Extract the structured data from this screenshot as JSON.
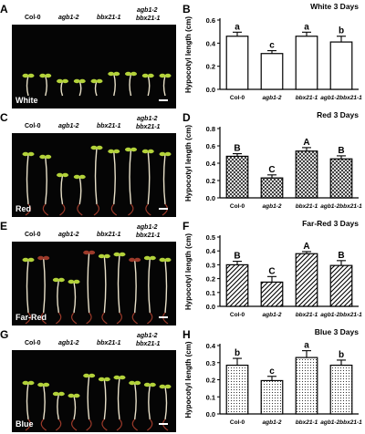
{
  "panels": [
    {
      "photo_label": "A",
      "chart_label": "B",
      "condition": "White",
      "pattern": "white",
      "chart_data": {
        "type": "bar",
        "title": "White 3 Days",
        "xlabel": "",
        "ylabel": "Hypocotyl length (cm)",
        "categories": [
          "Col-0",
          "agb1-2",
          "bbx21-1",
          "agb1-2bbx21-1"
        ],
        "values": [
          0.46,
          0.31,
          0.46,
          0.41
        ],
        "errors": [
          0.035,
          0.025,
          0.035,
          0.05
        ],
        "letters": [
          "a",
          "c",
          "a",
          "b"
        ],
        "ylim": [
          0,
          0.6
        ],
        "yticks": [
          "0.0",
          "0.2",
          "0.4",
          "0.6"
        ]
      }
    },
    {
      "photo_label": "C",
      "chart_label": "D",
      "condition": "Red",
      "pattern": "cross",
      "chart_data": {
        "type": "bar",
        "title": "Red 3 Days",
        "xlabel": "",
        "ylabel": "Hypocotyl length (cm)",
        "categories": [
          "Col-0",
          "agb1-2",
          "bbx21-1",
          "agb1-2bbx21-1"
        ],
        "values": [
          0.48,
          0.23,
          0.54,
          0.45
        ],
        "errors": [
          0.03,
          0.035,
          0.04,
          0.035
        ],
        "letters": [
          "B",
          "C",
          "A",
          "B"
        ],
        "ylim": [
          0,
          0.8
        ],
        "yticks": [
          "0.0",
          "0.2",
          "0.4",
          "0.6",
          "0.8"
        ]
      }
    },
    {
      "photo_label": "E",
      "chart_label": "F",
      "condition": "Far-Red",
      "pattern": "diag",
      "chart_data": {
        "type": "bar",
        "title": "Far-Red 3 Days",
        "xlabel": "",
        "ylabel": "Hypocotyl length (cm)",
        "categories": [
          "Col-0",
          "agb1-2",
          "bbx21-1",
          "agb1-2bbx21-1"
        ],
        "values": [
          0.3,
          0.175,
          0.38,
          0.295
        ],
        "errors": [
          0.025,
          0.04,
          0.015,
          0.035
        ],
        "letters": [
          "B",
          "C",
          "A",
          "B"
        ],
        "ylim": [
          0,
          0.5
        ],
        "yticks": [
          "0.0",
          "0.1",
          "0.2",
          "0.3",
          "0.4",
          "0.5"
        ]
      }
    },
    {
      "photo_label": "G",
      "chart_label": "H",
      "condition": "Blue",
      "pattern": "dots",
      "chart_data": {
        "type": "bar",
        "title": "Blue 3 Days",
        "xlabel": "",
        "ylabel": "Hypocotyl length (cm)",
        "categories": [
          "Col-0",
          "agb1-2",
          "bbx21-1",
          "agb1-2bbx21-1"
        ],
        "values": [
          0.285,
          0.195,
          0.33,
          0.285
        ],
        "errors": [
          0.04,
          0.025,
          0.04,
          0.03
        ],
        "letters": [
          "b",
          "c",
          "a",
          "b"
        ],
        "ylim": [
          0,
          0.4
        ],
        "yticks": [
          "0.0",
          "0.1",
          "0.2",
          "0.3",
          "0.4"
        ]
      }
    }
  ],
  "genotypes": {
    "col0": "Col-0",
    "agb": "agb1-2",
    "bbx": "bbx21-1",
    "double_top": "agb1-2",
    "double_bottom": "bbx21-1"
  },
  "colors": {
    "photo_background": "#050505",
    "cotyledon_green": "#b3d23a",
    "hypocotyl": "#e8e0c8",
    "root_red": "#9c3a2a",
    "bar_outline": "#000000"
  }
}
